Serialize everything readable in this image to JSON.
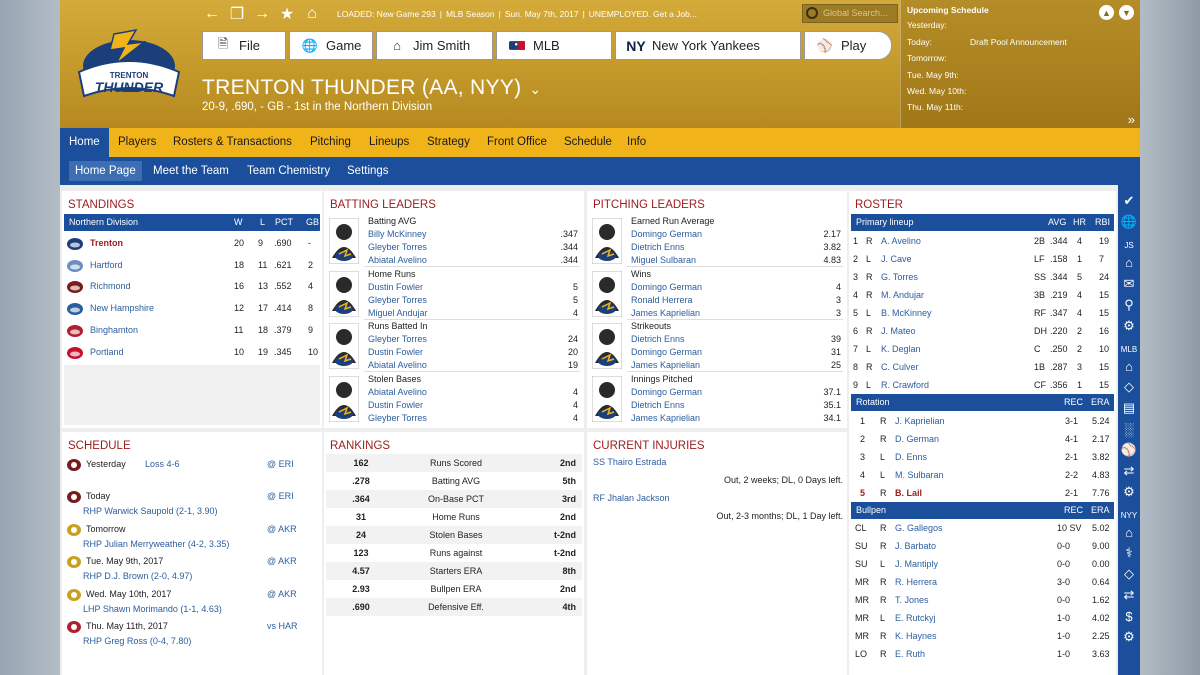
{
  "topbar": {
    "loaded": "LOADED: New Game 293",
    "season": "MLB Season",
    "date": "Sun. May 7th, 2017",
    "status": "UNEMPLOYED. Get a Job...",
    "search_placeholder": "Global Search..."
  },
  "menu": {
    "file": "File",
    "game": "Game",
    "manager": "Jim Smith",
    "mlb": "MLB",
    "team": "New York Yankees",
    "play": "Play"
  },
  "team": {
    "name": "TRENTON THUNDER (AA, NYY)",
    "record": "20-9, .690, - GB - 1st in the  Northern Division",
    "logo_text": "TRENTON THUNDER"
  },
  "upcoming": {
    "title": "Upcoming Schedule",
    "rows": [
      {
        "day": "Yesterday:",
        "event": ""
      },
      {
        "day": "Today:",
        "event": "Draft Pool Announcement"
      },
      {
        "day": "Tomorrow:",
        "event": ""
      },
      {
        "day": "Tue. May 9th:",
        "event": ""
      },
      {
        "day": "Wed. May 10th:",
        "event": ""
      },
      {
        "day": "Thu. May 11th:",
        "event": ""
      }
    ]
  },
  "nav1": [
    "Home",
    "Players",
    "Rosters & Transactions",
    "Pitching",
    "Lineups",
    "Strategy",
    "Front Office",
    "Schedule",
    "Info"
  ],
  "nav2": [
    "Home Page",
    "Meet the Team",
    "Team Chemistry",
    "Settings"
  ],
  "standings": {
    "title": "STANDINGS",
    "division": "Northern Division",
    "cols": [
      "W",
      "L",
      "PCT",
      "GB"
    ],
    "rows": [
      {
        "team": "Trenton",
        "w": "20",
        "l": "9",
        "pct": ".690",
        "gb": "-"
      },
      {
        "team": "Hartford",
        "w": "18",
        "l": "11",
        "pct": ".621",
        "gb": "2"
      },
      {
        "team": "Richmond",
        "w": "16",
        "l": "13",
        "pct": ".552",
        "gb": "4"
      },
      {
        "team": "New Hampshire",
        "w": "12",
        "l": "17",
        "pct": ".414",
        "gb": "8"
      },
      {
        "team": "Binghamton",
        "w": "11",
        "l": "18",
        "pct": ".379",
        "gb": "9"
      },
      {
        "team": "Portland",
        "w": "10",
        "l": "19",
        "pct": ".345",
        "gb": "10"
      }
    ]
  },
  "batting": {
    "title": "BATTING LEADERS",
    "groups": [
      {
        "cat": "Batting AVG",
        "players": [
          [
            "Billy McKinney",
            ".347"
          ],
          [
            "Gleyber Torres",
            ".344"
          ],
          [
            "Abiatal Avelino",
            ".344"
          ]
        ]
      },
      {
        "cat": "Home Runs",
        "players": [
          [
            "Dustin Fowler",
            "5"
          ],
          [
            "Gleyber Torres",
            "5"
          ],
          [
            "Miguel Andujar",
            "4"
          ]
        ]
      },
      {
        "cat": "Runs Batted In",
        "players": [
          [
            "Gleyber Torres",
            "24"
          ],
          [
            "Dustin Fowler",
            "20"
          ],
          [
            "Abiatal Avelino",
            "19"
          ]
        ]
      },
      {
        "cat": "Stolen Bases",
        "players": [
          [
            "Abiatal Avelino",
            "4"
          ],
          [
            "Dustin Fowler",
            "4"
          ],
          [
            "Gleyber Torres",
            "4"
          ]
        ]
      }
    ]
  },
  "pitching": {
    "title": "PITCHING LEADERS",
    "groups": [
      {
        "cat": "Earned Run Average",
        "players": [
          [
            "Domingo German",
            "2.17"
          ],
          [
            "Dietrich Enns",
            "3.82"
          ],
          [
            "Miguel Sulbaran",
            "4.83"
          ]
        ]
      },
      {
        "cat": "Wins",
        "players": [
          [
            "Domingo German",
            "4"
          ],
          [
            "Ronald Herrera",
            "3"
          ],
          [
            "James Kaprielian",
            "3"
          ]
        ]
      },
      {
        "cat": "Strikeouts",
        "players": [
          [
            "Dietrich Enns",
            "39"
          ],
          [
            "Domingo German",
            "31"
          ],
          [
            "James Kaprielian",
            "25"
          ]
        ]
      },
      {
        "cat": "Innings Pitched",
        "players": [
          [
            "Domingo German",
            "37.1"
          ],
          [
            "Dietrich Enns",
            "35.1"
          ],
          [
            "James Kaprielian",
            "34.1"
          ]
        ]
      }
    ]
  },
  "roster": {
    "title": "ROSTER",
    "lineup_header": "Primary lineup",
    "lineup_cols": [
      "AVG",
      "HR",
      "RBI"
    ],
    "lineup": [
      [
        "1",
        "R",
        "A. Avelino",
        "2B",
        ".344",
        "4",
        "19"
      ],
      [
        "2",
        "L",
        "J. Cave",
        "LF",
        ".158",
        "1",
        "7"
      ],
      [
        "3",
        "R",
        "G. Torres",
        "SS",
        ".344",
        "5",
        "24"
      ],
      [
        "4",
        "R",
        "M. Andujar",
        "3B",
        ".219",
        "4",
        "15"
      ],
      [
        "5",
        "L",
        "B. McKinney",
        "RF",
        ".347",
        "4",
        "15"
      ],
      [
        "6",
        "R",
        "J. Mateo",
        "DH",
        ".220",
        "2",
        "16"
      ],
      [
        "7",
        "L",
        "K. Deglan",
        "C",
        ".250",
        "2",
        "10"
      ],
      [
        "8",
        "R",
        "C. Culver",
        "1B",
        ".287",
        "3",
        "15"
      ],
      [
        "9",
        "L",
        "R. Crawford",
        "CF",
        ".356",
        "1",
        "15"
      ]
    ],
    "rotation_header": "Rotation",
    "rotation_cols": [
      "REC",
      "ERA"
    ],
    "rotation": [
      [
        "1",
        "R",
        "J. Kaprielian",
        "3-1",
        "5.24"
      ],
      [
        "2",
        "R",
        "D. German",
        "4-1",
        "2.17"
      ],
      [
        "3",
        "L",
        "D. Enns",
        "2-1",
        "3.82"
      ],
      [
        "4",
        "L",
        "M. Sulbaran",
        "2-2",
        "4.83"
      ],
      [
        "5",
        "R",
        "B. Lail",
        "2-1",
        "7.76"
      ]
    ],
    "bullpen_header": "Bullpen",
    "bullpen_cols": [
      "REC",
      "ERA"
    ],
    "bullpen": [
      [
        "CL",
        "R",
        "G. Gallegos",
        "10 SV",
        "5.02"
      ],
      [
        "SU",
        "R",
        "J. Barbato",
        "0-0",
        "9.00"
      ],
      [
        "SU",
        "L",
        "J. Mantiply",
        "0-0",
        "0.00"
      ],
      [
        "MR",
        "R",
        "R. Herrera",
        "3-0",
        "0.64"
      ],
      [
        "MR",
        "R",
        "T. Jones",
        "0-0",
        "1.62"
      ],
      [
        "MR",
        "L",
        "E. Rutckyj",
        "1-0",
        "4.02"
      ],
      [
        "MR",
        "R",
        "K. Haynes",
        "1-0",
        "2.25"
      ],
      [
        "LO",
        "R",
        "E. Ruth",
        "1-0",
        "3.63"
      ]
    ]
  },
  "schedule": {
    "title": "SCHEDULE",
    "rows": [
      {
        "day": "Yesterday",
        "result": "Loss 4-6",
        "opp": "@ ERI",
        "pitcher": ""
      },
      {
        "day": "Today",
        "result": "",
        "opp": "@ ERI",
        "pitcher": "RHP Warwick Saupold (2-1, 3.90)"
      },
      {
        "day": "Tomorrow",
        "result": "",
        "opp": "@ AKR",
        "pitcher": "RHP Julian Merryweather (4-2, 3.35)"
      },
      {
        "day": "Tue. May 9th, 2017",
        "result": "",
        "opp": "@ AKR",
        "pitcher": "RHP D.J. Brown (2-0, 4.97)"
      },
      {
        "day": "Wed. May 10th, 2017",
        "result": "",
        "opp": "@ AKR",
        "pitcher": "LHP Shawn Morimando (1-1, 4.63)"
      },
      {
        "day": "Thu. May 11th, 2017",
        "result": "",
        "opp": "vs HAR",
        "pitcher": "RHP Greg Ross (0-4, 7.80)"
      }
    ]
  },
  "rankings": {
    "title": "RANKINGS",
    "rows": [
      [
        "162",
        "Runs Scored",
        "2nd"
      ],
      [
        ".278",
        "Batting AVG",
        "5th"
      ],
      [
        ".364",
        "On-Base PCT",
        "3rd"
      ],
      [
        "31",
        "Home Runs",
        "2nd"
      ],
      [
        "24",
        "Stolen Bases",
        "t-2nd"
      ],
      [
        "123",
        "Runs against",
        "t-2nd"
      ],
      [
        "4.57",
        "Starters ERA",
        "8th"
      ],
      [
        "2.93",
        "Bullpen ERA",
        "2nd"
      ],
      [
        ".690",
        "Defensive Eff.",
        "4th"
      ]
    ]
  },
  "injuries": {
    "title": "CURRENT INJURIES",
    "rows": [
      {
        "player": "SS Thairo Estrada",
        "detail": "Out, 2 weeks; DL, 0 Days left."
      },
      {
        "player": "RF Jhalan Jackson",
        "detail": "Out, 2-3 months; DL, 1 Day left."
      }
    ]
  },
  "sidebar": {
    "labels": [
      "JS",
      "MLB",
      "NYY"
    ]
  },
  "colors": {
    "gold": "#f0b319",
    "blue": "#1b4f9c",
    "red": "#9b1c1c",
    "link": "#2c5d9e"
  }
}
